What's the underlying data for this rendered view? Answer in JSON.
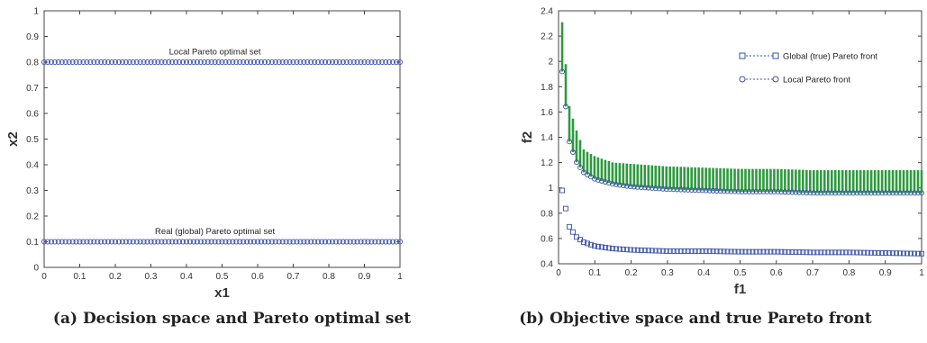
{
  "chart_data": [
    {
      "type": "scatter",
      "caption": "(a) Decision space and Pareto optimal set",
      "xlabel": "x1",
      "ylabel": "x2",
      "xlim": [
        0,
        1
      ],
      "ylim": [
        0,
        1
      ],
      "xticks": [
        "0",
        "0.1",
        "0.2",
        "0.3",
        "0.4",
        "0.5",
        "0.6",
        "0.7",
        "0.8",
        "0.9",
        "1"
      ],
      "yticks": [
        "0",
        "0.1",
        "0.2",
        "0.3",
        "0.4",
        "0.5",
        "0.6",
        "0.7",
        "0.8",
        "0.9",
        "1"
      ],
      "grid": false,
      "marker_color": "#3a52a8",
      "annotations": [
        {
          "text": "Local Pareto optimal set",
          "x": 0.48,
          "y": 0.83
        },
        {
          "text": "Real (global) Pareto optimal set",
          "x": 0.48,
          "y": 0.13
        }
      ],
      "series": [
        {
          "marker": "circle",
          "y": 0.8,
          "x_start": 0,
          "x_end": 1,
          "count": 101
        },
        {
          "marker": "circle",
          "y": 0.1,
          "x_start": 0,
          "x_end": 1,
          "count": 101
        }
      ]
    },
    {
      "type": "scatter",
      "caption": "(b) Objective space and true Pareto front",
      "xlabel": "f1",
      "ylabel": "f2",
      "xlim": [
        0,
        1
      ],
      "ylim": [
        0.4,
        2.4
      ],
      "xticks": [
        "0",
        "0.1",
        "0.2",
        "0.3",
        "0.4",
        "0.5",
        "0.6",
        "0.7",
        "0.8",
        "0.9",
        "1"
      ],
      "yticks": [
        "0.4",
        "0.6",
        "0.8",
        "1",
        "1.2",
        "1.4",
        "1.6",
        "1.8",
        "2",
        "2.2",
        "2.4"
      ],
      "grid": false,
      "legend_position": "top-right",
      "colors": {
        "global": "#3a52a8",
        "local": "#3a52a8",
        "bars": "#2e9a3e"
      },
      "series": [
        {
          "name": "Global (true) Pareto front",
          "marker": "square",
          "x": [
            0.01,
            0.03,
            0.05,
            0.07,
            0.1,
            0.15,
            0.2,
            0.3,
            0.4,
            0.5,
            0.6,
            0.7,
            0.8,
            0.9,
            1.0
          ],
          "y": [
            0.98,
            0.69,
            0.61,
            0.57,
            0.54,
            0.52,
            0.51,
            0.5,
            0.5,
            0.495,
            0.495,
            0.49,
            0.49,
            0.485,
            0.48
          ]
        },
        {
          "name": "Local Pareto front",
          "marker": "circle",
          "x": [
            0.01,
            0.03,
            0.05,
            0.07,
            0.1,
            0.15,
            0.2,
            0.3,
            0.4,
            0.5,
            0.6,
            0.7,
            0.8,
            0.9,
            1.0
          ],
          "y": [
            1.92,
            1.36,
            1.2,
            1.12,
            1.07,
            1.03,
            1.01,
            0.99,
            0.98,
            0.97,
            0.97,
            0.96,
            0.96,
            0.96,
            0.96
          ]
        },
        {
          "name": "",
          "marker": "bar",
          "x": [
            0.01,
            0.03,
            0.05,
            0.07,
            0.1,
            0.15,
            0.2,
            0.3,
            0.4,
            0.5,
            0.6,
            0.7,
            0.8,
            0.9,
            1.0
          ],
          "y": [
            2.31,
            1.64,
            1.45,
            1.3,
            1.25,
            1.2,
            1.19,
            1.17,
            1.16,
            1.15,
            1.15,
            1.14,
            1.14,
            1.14,
            1.14
          ]
        }
      ]
    }
  ]
}
